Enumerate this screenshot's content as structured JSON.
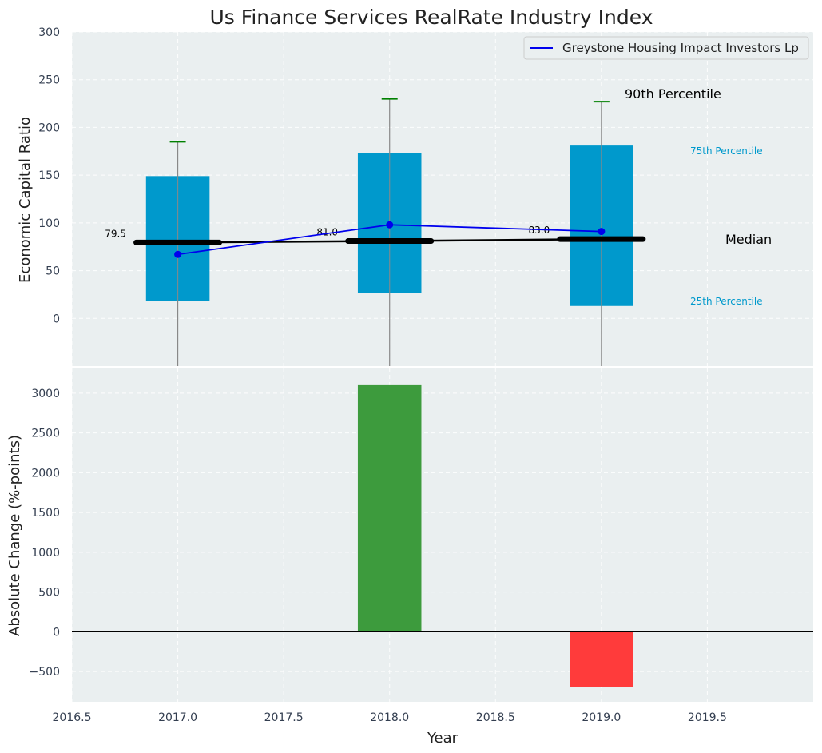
{
  "chart_data": [
    {
      "type": "box",
      "title": "Us Finance Services RealRate Industry Index",
      "ylabel": "Economic Capital Ratio",
      "ylim": [
        -50,
        300
      ],
      "yticks": [
        0,
        50,
        100,
        150,
        200,
        250,
        300
      ],
      "xlim": [
        2016.5,
        2020.0
      ],
      "grid": true,
      "legend_position": "top-right",
      "boxes": [
        {
          "x": 2017,
          "p25": 18,
          "p75": 149,
          "median": 79.5,
          "p90": 185,
          "median_label": "79.5"
        },
        {
          "x": 2018,
          "p25": 27,
          "p75": 173,
          "median": 81.0,
          "p90": 230,
          "median_label": "81.0"
        },
        {
          "x": 2019,
          "p25": 13,
          "p75": 181,
          "median": 83.0,
          "p90": 227,
          "median_label": "83.0"
        }
      ],
      "series": [
        {
          "name": "Greystone Housing Impact Investors Lp",
          "x": [
            2017,
            2018,
            2019
          ],
          "values": [
            67,
            98,
            91
          ],
          "color": "#0000ee"
        }
      ],
      "annotations": {
        "p90": "90th Percentile",
        "p75": "75th Percentile",
        "median": "Median",
        "p25": "25th Percentile"
      },
      "colors": {
        "box": "#0099cc",
        "whisker_cap": "#008000",
        "median": "#000000",
        "background": "#eaeff0"
      }
    },
    {
      "type": "bar",
      "xlabel": "Year",
      "ylabel": "Absolute Change (%-points)",
      "ylim": [
        -880,
        3320
      ],
      "yticks": [
        -500,
        0,
        500,
        1000,
        1500,
        2000,
        2500,
        3000
      ],
      "xlim": [
        2016.5,
        2020.0
      ],
      "xticks": [
        2016.5,
        2017.0,
        2017.5,
        2018.0,
        2018.5,
        2019.0,
        2019.5
      ],
      "grid": true,
      "bars": [
        {
          "x": 2018,
          "value": 3100,
          "color": "#3d9b3d"
        },
        {
          "x": 2019,
          "value": -690,
          "color": "#ff3b3b"
        }
      ]
    }
  ]
}
